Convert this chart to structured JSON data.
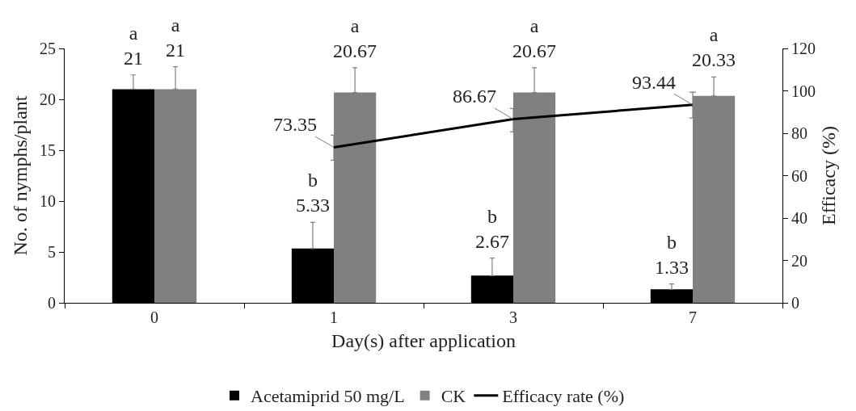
{
  "chart_data": {
    "type": "bar",
    "xlabel": "Day(s) after application",
    "ylabel": "No. of nymphs/plant",
    "y2label": "Efficacy (%)",
    "categories": [
      "0",
      "1",
      "3",
      "7"
    ],
    "ylim": [
      0,
      25
    ],
    "yticks": [
      0,
      5,
      10,
      15,
      20,
      25
    ],
    "y2lim": [
      0,
      120
    ],
    "y2ticks": [
      0,
      20,
      40,
      60,
      80,
      100,
      120
    ],
    "legend": "bottom",
    "series": [
      {
        "name": "Acetamiprid 50 mg/L",
        "color": "#000000",
        "values": [
          21,
          5.33,
          2.67,
          1.33
        ],
        "errors": [
          [
            21,
            22.4
          ],
          [
            5.33,
            7.9
          ],
          [
            2.67,
            4.4
          ],
          [
            1.33,
            1.85
          ]
        ],
        "value_labels": [
          "a\n21",
          "b\n5.33",
          "b\n2.67",
          "b\n1.33"
        ]
      },
      {
        "name": "CK",
        "color": "#808080",
        "values": [
          21,
          20.67,
          20.67,
          20.33
        ],
        "errors": [
          [
            21,
            23.2
          ],
          [
            20.67,
            23.1
          ],
          [
            20.67,
            23.1
          ],
          [
            20.33,
            22.2
          ]
        ],
        "value_labels": [
          "a\n21",
          "a\n20.67",
          "a\n20.67",
          "a\n20.33"
        ]
      },
      {
        "name": "Efficacy rate (%)",
        "type": "line",
        "axis": "y2",
        "color": "#000000",
        "values": [
          null,
          73.35,
          86.67,
          93.44
        ],
        "errors": [
          null,
          [
            67.3,
            79.1
          ],
          [
            80.6,
            91.7
          ],
          [
            87.2,
            99.4
          ]
        ],
        "value_labels": [
          null,
          "73.35",
          "86.67",
          "93.44"
        ]
      }
    ]
  }
}
